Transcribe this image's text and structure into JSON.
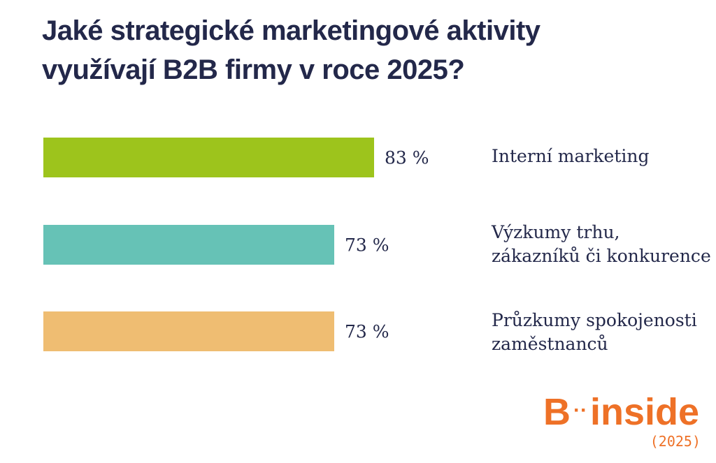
{
  "title_lines": [
    "Jaké strategické marketingové aktivity",
    "využívají B2B firmy v roce 2025?"
  ],
  "logo": {
    "letter": "B",
    "separator": "··",
    "word": "inside",
    "year": "(2025)"
  },
  "colors": {
    "green": "#9dc41c",
    "teal": "#66c2b6",
    "orange": "#efbd72",
    "text": "#23284a",
    "brand": "#ee7127"
  },
  "chart_data": {
    "type": "bar",
    "orientation": "horizontal",
    "title": "Jaké strategické marketingové aktivity využívají B2B firmy v roce 2025?",
    "value_suffix": " %",
    "xlim": [
      0,
      100
    ],
    "bars": [
      {
        "label_lines": [
          "Interní marketing"
        ],
        "value": 83,
        "color": "#9dc41c"
      },
      {
        "label_lines": [
          "Výzkumy trhu,",
          "zákazníků či konkurence"
        ],
        "value": 73,
        "color": "#66c2b6"
      },
      {
        "label_lines": [
          "Průzkumy spokojenosti",
          "zaměstnanců"
        ],
        "value": 73,
        "color": "#efbd72"
      }
    ]
  }
}
